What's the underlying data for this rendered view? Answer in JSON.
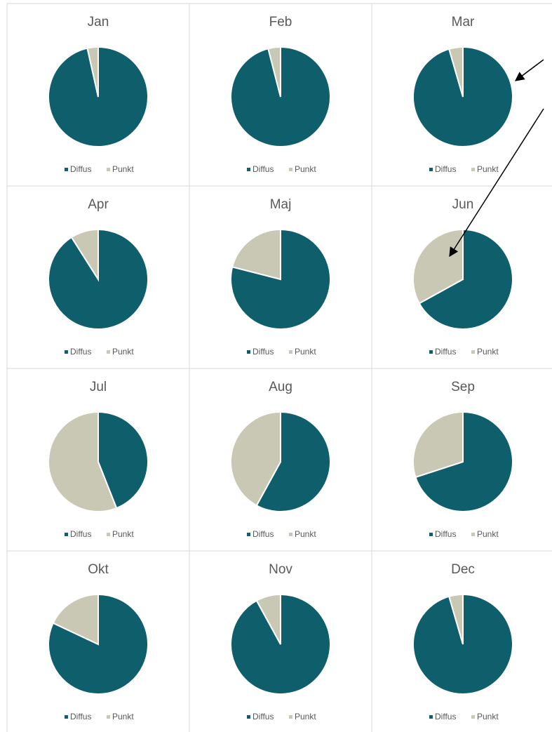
{
  "chart_data": [
    {
      "type": "pie",
      "title": "Jan",
      "categories": [
        "Diffus",
        "Punkt"
      ],
      "values": [
        96.5,
        3.5
      ],
      "colors": [
        "#0e5f6b",
        "#c9c8b5"
      ]
    },
    {
      "type": "pie",
      "title": "Feb",
      "categories": [
        "Diffus",
        "Punkt"
      ],
      "values": [
        96,
        4
      ],
      "colors": [
        "#0e5f6b",
        "#c9c8b5"
      ]
    },
    {
      "type": "pie",
      "title": "Mar",
      "categories": [
        "Diffus",
        "Punkt"
      ],
      "values": [
        95.5,
        4.5
      ],
      "colors": [
        "#0e5f6b",
        "#c9c8b5"
      ]
    },
    {
      "type": "pie",
      "title": "Apr",
      "categories": [
        "Diffus",
        "Punkt"
      ],
      "values": [
        91,
        9
      ],
      "colors": [
        "#0e5f6b",
        "#c9c8b5"
      ]
    },
    {
      "type": "pie",
      "title": "Maj",
      "categories": [
        "Diffus",
        "Punkt"
      ],
      "values": [
        79,
        21
      ],
      "colors": [
        "#0e5f6b",
        "#c9c8b5"
      ]
    },
    {
      "type": "pie",
      "title": "Jun",
      "categories": [
        "Diffus",
        "Punkt"
      ],
      "values": [
        67,
        33
      ],
      "colors": [
        "#0e5f6b",
        "#c9c8b5"
      ]
    },
    {
      "type": "pie",
      "title": "Jul",
      "categories": [
        "Diffus",
        "Punkt"
      ],
      "values": [
        44,
        56
      ],
      "colors": [
        "#0e5f6b",
        "#c9c8b5"
      ]
    },
    {
      "type": "pie",
      "title": "Aug",
      "categories": [
        "Diffus",
        "Punkt"
      ],
      "values": [
        58,
        42
      ],
      "colors": [
        "#0e5f6b",
        "#c9c8b5"
      ]
    },
    {
      "type": "pie",
      "title": "Sep",
      "categories": [
        "Diffus",
        "Punkt"
      ],
      "values": [
        70,
        30
      ],
      "colors": [
        "#0e5f6b",
        "#c9c8b5"
      ]
    },
    {
      "type": "pie",
      "title": "Okt",
      "categories": [
        "Diffus",
        "Punkt"
      ],
      "values": [
        82,
        18
      ],
      "colors": [
        "#0e5f6b",
        "#c9c8b5"
      ]
    },
    {
      "type": "pie",
      "title": "Nov",
      "categories": [
        "Diffus",
        "Punkt"
      ],
      "values": [
        92,
        8
      ],
      "colors": [
        "#0e5f6b",
        "#c9c8b5"
      ]
    },
    {
      "type": "pie",
      "title": "Dec",
      "categories": [
        "Diffus",
        "Punkt"
      ],
      "values": [
        95.5,
        4.5
      ],
      "colors": [
        "#0e5f6b",
        "#c9c8b5"
      ]
    }
  ]
}
